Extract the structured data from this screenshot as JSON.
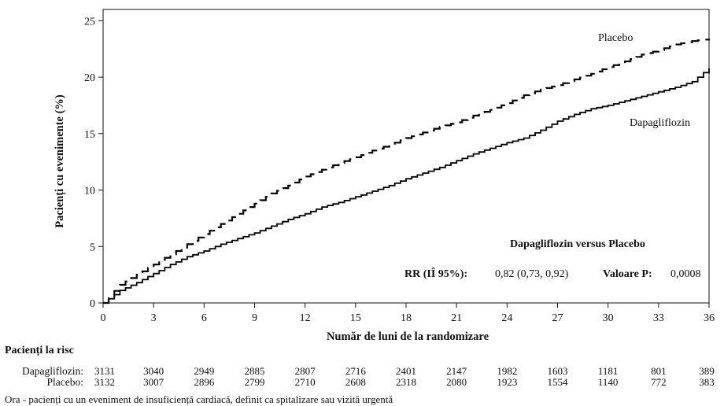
{
  "chart_data": {
    "type": "line",
    "ylabel": "Pacienți cu evenimente (%)",
    "xlabel": "Număr de luni de la randomizare",
    "xlim": [
      0,
      36
    ],
    "ylim": [
      0,
      26
    ],
    "xticks": [
      0,
      3,
      6,
      9,
      12,
      15,
      18,
      21,
      24,
      27,
      30,
      33,
      36
    ],
    "yticks": [
      0,
      5,
      10,
      15,
      20,
      25
    ],
    "grid": false,
    "series": [
      {
        "name": "Placebo",
        "style": "dashed",
        "color": "#000000",
        "x": [
          0,
          1,
          2,
          3,
          4,
          5,
          6,
          7,
          8,
          9,
          10,
          11,
          12,
          13,
          14,
          15,
          16,
          17,
          18,
          19,
          20,
          21,
          22,
          23,
          24,
          25,
          26,
          27,
          28,
          29,
          30,
          31,
          32,
          33,
          34,
          35,
          36
        ],
        "values": [
          0,
          1.6,
          2.5,
          3.4,
          4.3,
          5.2,
          6.1,
          7.0,
          7.9,
          8.8,
          9.7,
          10.4,
          11.2,
          11.8,
          12.4,
          12.9,
          13.5,
          14.0,
          14.6,
          15.1,
          15.6,
          16.0,
          16.6,
          17.1,
          17.7,
          18.4,
          18.9,
          19.3,
          19.8,
          20.3,
          20.9,
          21.4,
          22.0,
          22.4,
          22.9,
          23.2,
          23.4
        ]
      },
      {
        "name": "Dapagliflozin",
        "style": "solid",
        "color": "#000000",
        "x": [
          0,
          1,
          2,
          3,
          4,
          5,
          6,
          7,
          8,
          9,
          10,
          11,
          12,
          13,
          14,
          15,
          16,
          17,
          18,
          19,
          20,
          21,
          22,
          23,
          24,
          25,
          26,
          27,
          28,
          29,
          30,
          31,
          32,
          33,
          34,
          35,
          36
        ],
        "values": [
          0,
          1.1,
          1.8,
          2.6,
          3.4,
          4.1,
          4.6,
          5.2,
          5.7,
          6.2,
          6.8,
          7.4,
          7.9,
          8.5,
          8.9,
          9.4,
          9.9,
          10.4,
          11.0,
          11.5,
          12.0,
          12.6,
          13.2,
          13.7,
          14.2,
          14.6,
          15.3,
          16.1,
          16.7,
          17.2,
          17.5,
          17.9,
          18.3,
          18.7,
          19.1,
          19.6,
          20.8
        ]
      }
    ],
    "annotations": {
      "placebo_label": "Placebo",
      "dapagliflozin_label": "Dapagliflozin",
      "comparison_title": "Dapagliflozin versus Placebo",
      "rr_label": "RR (IÎ 95%):",
      "rr_value": "0,82 (0,73, 0,92)",
      "p_label": "Valoare P:",
      "p_value": "0,0008"
    }
  },
  "risk_table": {
    "title": "Pacienți la risc",
    "rows": [
      {
        "label": "Dapagliflozin:",
        "values": [
          "3131",
          "3040",
          "2949",
          "2885",
          "2807",
          "2716",
          "2401",
          "2147",
          "1982",
          "1603",
          "1181",
          "801",
          "389"
        ]
      },
      {
        "label": "Placebo:",
        "values": [
          "3132",
          "3007",
          "2896",
          "2799",
          "2710",
          "2608",
          "2318",
          "2080",
          "1923",
          "1554",
          "1140",
          "772",
          "383"
        ]
      }
    ]
  },
  "footnote": "Ora - pacienți cu un eveniment de insuficiență cardiacă, definit ca spitalizare sau vizită urgentă"
}
